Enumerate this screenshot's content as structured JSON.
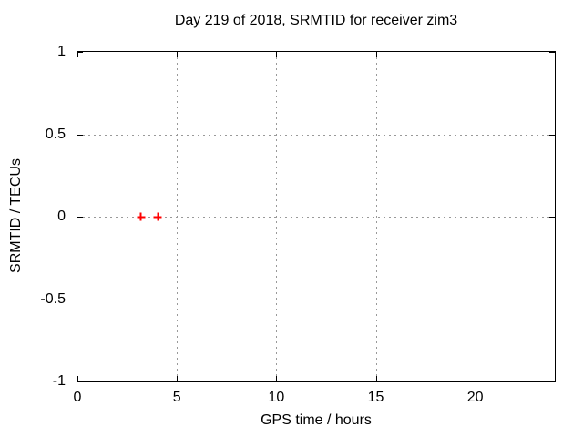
{
  "chart_data": {
    "type": "scatter",
    "title": "Day 219 of 2018, SRMTID for receiver zim3",
    "xlabel": "GPS time / hours",
    "ylabel": "SRMTID / TECUs",
    "xlim": [
      0,
      24
    ],
    "ylim": [
      -1,
      1
    ],
    "xticks": [
      0,
      5,
      10,
      15,
      20
    ],
    "xtick_labels": [
      "0",
      "5",
      "10",
      "15",
      "20"
    ],
    "yticks": [
      1,
      0.5,
      0,
      -0.5,
      -1
    ],
    "ytick_labels": [
      "1",
      "0.5",
      "0",
      "-0.5",
      "-1"
    ],
    "grid": true,
    "legend_position": "none",
    "series": [
      {
        "name": "SRMTID",
        "marker": "plus",
        "color": "#ff0000",
        "points": [
          [
            3.2,
            0
          ],
          [
            4.05,
            0
          ]
        ]
      }
    ],
    "colors": {
      "background": "#ffffff",
      "axis": "#000000",
      "grid": "#999999",
      "text": "#000000",
      "marker": "#ff0000"
    }
  }
}
